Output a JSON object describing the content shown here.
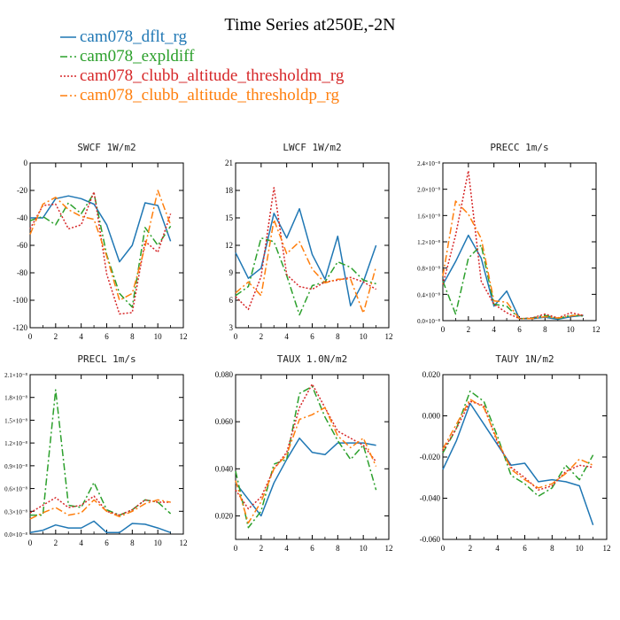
{
  "figure": {
    "title": "Time Series at250E,-2N",
    "legend": [
      {
        "label": "cam078_dflt_rg",
        "color": "#1f77b4",
        "dash": "solid"
      },
      {
        "label": "cam078_expldiff",
        "color": "#2ca02c",
        "dash": "dashdot"
      },
      {
        "label": "cam078_clubb_altitude_thresholdm_rg",
        "color": "#d62728",
        "dash": "dotted"
      },
      {
        "label": "cam078_clubb_altitude_thresholdp_rg",
        "color": "#ff7f0e",
        "dash": "dashdot"
      }
    ]
  },
  "chart_data": [
    {
      "type": "line",
      "title": "SWCF   1W/m2",
      "xlim": [
        0,
        12
      ],
      "ylim": [
        -120,
        0
      ],
      "xticks": [
        "0",
        "2",
        "4",
        "6",
        "8",
        "10",
        "12"
      ],
      "yticks": [
        {
          "v": 0,
          "label": "0"
        },
        {
          "v": -20,
          "label": "-20"
        },
        {
          "v": -40,
          "label": "-40"
        },
        {
          "v": -60,
          "label": "-60"
        },
        {
          "v": -80,
          "label": "-80"
        },
        {
          "v": -100,
          "label": "-100"
        },
        {
          "v": -120,
          "label": "-120"
        }
      ],
      "x": [
        0,
        1,
        2,
        3,
        4,
        5,
        6,
        7,
        8,
        9,
        10,
        11
      ],
      "series": [
        {
          "name": "cam078_dflt_rg",
          "values": [
            -40,
            -40,
            -26,
            -24,
            -26,
            -30,
            -45,
            -72,
            -60,
            -29,
            -31,
            -57
          ]
        },
        {
          "name": "cam078_expldiff",
          "values": [
            -42,
            -39,
            -45,
            -29,
            -37,
            -22,
            -67,
            -95,
            -105,
            -47,
            -60,
            -46
          ]
        },
        {
          "name": "cam078_clubb_altitude_thresholdm_rg",
          "values": [
            -48,
            -31,
            -30,
            -48,
            -45,
            -21,
            -81,
            -110,
            -109,
            -57,
            -65,
            -37
          ]
        },
        {
          "name": "cam078_clubb_altitude_thresholdp_rg",
          "values": [
            -52,
            -30,
            -25,
            -34,
            -39,
            -41,
            -68,
            -100,
            -95,
            -61,
            -20,
            -45
          ]
        }
      ]
    },
    {
      "type": "line",
      "title": "LWCF   1W/m2",
      "xlim": [
        0,
        12
      ],
      "ylim": [
        3,
        21
      ],
      "xticks": [
        "0",
        "2",
        "4",
        "6",
        "8",
        "10",
        "12"
      ],
      "yticks": [
        {
          "v": 3,
          "label": "3"
        },
        {
          "v": 6,
          "label": "6"
        },
        {
          "v": 9,
          "label": "9"
        },
        {
          "v": 12,
          "label": "12"
        },
        {
          "v": 15,
          "label": "15"
        },
        {
          "v": 18,
          "label": "18"
        },
        {
          "v": 21,
          "label": "21"
        }
      ],
      "x": [
        0,
        1,
        2,
        3,
        4,
        5,
        6,
        7,
        8,
        9,
        10,
        11
      ],
      "series": [
        {
          "name": "cam078_dflt_rg",
          "values": [
            11.2,
            8.4,
            9.5,
            15.5,
            12.8,
            16.0,
            11.0,
            8.3,
            13.0,
            5.4,
            8.0,
            12.0
          ]
        },
        {
          "name": "cam078_expldiff",
          "values": [
            6.5,
            7.5,
            12.8,
            12.4,
            8.7,
            4.4,
            7.6,
            8.0,
            10.2,
            9.6,
            8.2,
            7.8
          ]
        },
        {
          "name": "cam078_clubb_altitude_thresholdm_rg",
          "values": [
            6.4,
            5.0,
            8.6,
            18.3,
            8.8,
            7.5,
            7.2,
            8.0,
            8.2,
            8.5,
            8.0,
            7.2
          ]
        },
        {
          "name": "cam078_clubb_altitude_thresholdp_rg",
          "values": [
            6.8,
            8.0,
            6.5,
            14.8,
            11.1,
            12.4,
            9.4,
            7.9,
            8.3,
            8.3,
            4.6,
            9.7
          ]
        }
      ]
    },
    {
      "type": "line",
      "title": "PRECC   1m/s",
      "xlim": [
        0,
        12
      ],
      "ylim": [
        0,
        2.4
      ],
      "yscale_label": "x10^-8",
      "xticks": [
        "0",
        "2",
        "4",
        "6",
        "8",
        "10",
        "12"
      ],
      "yticks": [
        {
          "v": 0,
          "label": "0.0×10⁻⁸"
        },
        {
          "v": 0.4,
          "label": "0.4×10⁻⁸"
        },
        {
          "v": 0.8,
          "label": "0.8×10⁻⁸"
        },
        {
          "v": 1.2,
          "label": "1.2×10⁻⁸"
        },
        {
          "v": 1.6,
          "label": "1.6×10⁻⁸"
        },
        {
          "v": 2.0,
          "label": "2.0×10⁻⁸"
        },
        {
          "v": 2.4,
          "label": "2.4×10⁻⁸"
        }
      ],
      "x": [
        0,
        1,
        2,
        3,
        4,
        5,
        6,
        7,
        8,
        9,
        10,
        11
      ],
      "series": [
        {
          "name": "cam078_dflt_rg",
          "values": [
            0.55,
            0.9,
            1.3,
            0.95,
            0.22,
            0.45,
            0.03,
            0.03,
            0.05,
            0.02,
            0.06,
            0.08
          ]
        },
        {
          "name": "cam078_expldiff",
          "values": [
            0.6,
            0.1,
            0.95,
            1.15,
            0.25,
            0.22,
            0.03,
            0.04,
            0.08,
            0.03,
            0.08,
            0.07
          ]
        },
        {
          "name": "cam078_clubb_altitude_thresholdm_rg",
          "values": [
            0.55,
            1.3,
            2.28,
            0.6,
            0.25,
            0.12,
            0.03,
            0.04,
            0.1,
            0.04,
            0.12,
            0.08
          ]
        },
        {
          "name": "cam078_clubb_altitude_thresholdp_rg",
          "values": [
            0.68,
            1.82,
            1.62,
            1.25,
            0.3,
            0.28,
            0.03,
            0.03,
            0.06,
            0.04,
            0.07,
            0.09
          ]
        }
      ]
    },
    {
      "type": "line",
      "title": "PRECL   1m/s",
      "xlim": [
        0,
        12
      ],
      "ylim": [
        0,
        2.1
      ],
      "yscale_label": "x10^-8",
      "xticks": [
        "0",
        "2",
        "4",
        "6",
        "8",
        "10",
        "12"
      ],
      "yticks": [
        {
          "v": 0,
          "label": "0.0×10⁻⁸"
        },
        {
          "v": 0.3,
          "label": "0.3×10⁻⁸"
        },
        {
          "v": 0.6,
          "label": "0.6×10⁻⁸"
        },
        {
          "v": 0.9,
          "label": "0.9×10⁻⁸"
        },
        {
          "v": 1.2,
          "label": "1.2×10⁻⁸"
        },
        {
          "v": 1.5,
          "label": "1.5×10⁻⁸"
        },
        {
          "v": 1.8,
          "label": "1.8×10⁻⁸"
        },
        {
          "v": 2.1,
          "label": "2.1×10⁻⁸"
        }
      ],
      "x": [
        0,
        1,
        2,
        3,
        4,
        5,
        6,
        7,
        8,
        9,
        10,
        11
      ],
      "series": [
        {
          "name": "cam078_dflt_rg",
          "values": [
            0.02,
            0.05,
            0.12,
            0.08,
            0.08,
            0.17,
            0.02,
            0.02,
            0.14,
            0.13,
            0.08,
            0.02
          ]
        },
        {
          "name": "cam078_expldiff",
          "values": [
            0.25,
            0.25,
            1.9,
            0.38,
            0.35,
            0.68,
            0.32,
            0.25,
            0.32,
            0.45,
            0.42,
            0.27
          ]
        },
        {
          "name": "cam078_clubb_altitude_thresholdm_rg",
          "values": [
            0.28,
            0.38,
            0.48,
            0.35,
            0.38,
            0.5,
            0.3,
            0.25,
            0.32,
            0.45,
            0.42,
            0.42
          ]
        },
        {
          "name": "cam078_clubb_altitude_thresholdp_rg",
          "values": [
            0.2,
            0.28,
            0.35,
            0.25,
            0.28,
            0.45,
            0.3,
            0.23,
            0.3,
            0.4,
            0.45,
            0.42
          ]
        }
      ]
    },
    {
      "type": "line",
      "title": "TAUX   1.0N/m2",
      "xlim": [
        0,
        12
      ],
      "ylim": [
        0.01,
        0.08
      ],
      "xticks": [
        "0",
        "2",
        "4",
        "6",
        "8",
        "10",
        "12"
      ],
      "yticks": [
        {
          "v": 0.02,
          "label": "0.020"
        },
        {
          "v": 0.04,
          "label": "0.040"
        },
        {
          "v": 0.06,
          "label": "0.060"
        },
        {
          "v": 0.08,
          "label": "0.080"
        }
      ],
      "x": [
        0,
        1,
        2,
        3,
        4,
        5,
        6,
        7,
        8,
        9,
        10,
        11
      ],
      "series": [
        {
          "name": "cam078_dflt_rg",
          "values": [
            0.034,
            0.027,
            0.02,
            0.034,
            0.044,
            0.053,
            0.047,
            0.046,
            0.051,
            0.051,
            0.051,
            0.05
          ]
        },
        {
          "name": "cam078_expldiff",
          "values": [
            0.039,
            0.015,
            0.022,
            0.042,
            0.044,
            0.072,
            0.075,
            0.062,
            0.052,
            0.044,
            0.05,
            0.031
          ]
        },
        {
          "name": "cam078_clubb_altitude_thresholdm_rg",
          "values": [
            0.031,
            0.023,
            0.028,
            0.04,
            0.047,
            0.066,
            0.076,
            0.066,
            0.056,
            0.053,
            0.05,
            0.043
          ]
        },
        {
          "name": "cam078_clubb_altitude_thresholdp_rg",
          "values": [
            0.035,
            0.017,
            0.026,
            0.04,
            0.046,
            0.061,
            0.063,
            0.066,
            0.054,
            0.049,
            0.053,
            0.041
          ]
        }
      ]
    },
    {
      "type": "line",
      "title": "TAUY   1N/m2",
      "xlim": [
        0,
        12
      ],
      "ylim": [
        -0.06,
        0.02
      ],
      "xticks": [
        "0",
        "2",
        "4",
        "6",
        "8",
        "10",
        "12"
      ],
      "yticks": [
        {
          "v": 0.02,
          "label": "0.020"
        },
        {
          "v": 0.0,
          "label": "0.000"
        },
        {
          "v": -0.02,
          "label": "-0.020"
        },
        {
          "v": -0.04,
          "label": "-0.040"
        },
        {
          "v": -0.06,
          "label": "-0.060"
        }
      ],
      "x": [
        0,
        1,
        2,
        3,
        4,
        5,
        6,
        7,
        8,
        9,
        10,
        11
      ],
      "series": [
        {
          "name": "cam078_dflt_rg",
          "values": [
            -0.026,
            -0.012,
            0.006,
            -0.004,
            -0.014,
            -0.024,
            -0.023,
            -0.032,
            -0.031,
            -0.032,
            -0.034,
            -0.053
          ]
        },
        {
          "name": "cam078_expldiff",
          "values": [
            -0.018,
            -0.006,
            0.012,
            0.007,
            -0.01,
            -0.029,
            -0.033,
            -0.039,
            -0.035,
            -0.024,
            -0.031,
            -0.019
          ]
        },
        {
          "name": "cam078_clubb_altitude_thresholdm_rg",
          "values": [
            -0.017,
            -0.006,
            0.007,
            0.005,
            -0.013,
            -0.025,
            -0.03,
            -0.036,
            -0.034,
            -0.027,
            -0.024,
            -0.025
          ]
        },
        {
          "name": "cam078_clubb_altitude_thresholdp_rg",
          "values": [
            -0.016,
            -0.004,
            0.008,
            0.004,
            -0.012,
            -0.026,
            -0.031,
            -0.035,
            -0.033,
            -0.028,
            -0.021,
            -0.024
          ]
        }
      ]
    }
  ]
}
